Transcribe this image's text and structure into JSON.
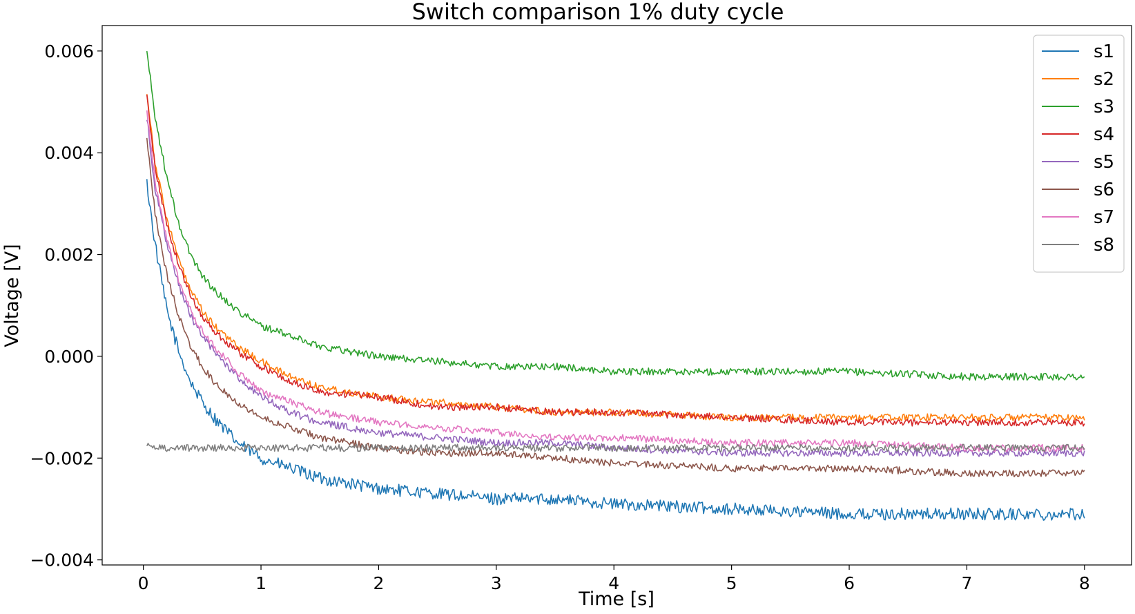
{
  "chart_data": {
    "type": "line",
    "title": "Switch comparison 1% duty cycle",
    "xlabel": "Time [s]",
    "ylabel": "Voltage [V]",
    "xlim": [
      -0.35,
      8.4
    ],
    "ylim": [
      -0.0041,
      0.0065
    ],
    "x_ticks": [
      0,
      1,
      2,
      3,
      4,
      5,
      6,
      7,
      8
    ],
    "x_tick_labels": [
      "0",
      "1",
      "2",
      "3",
      "4",
      "5",
      "6",
      "7",
      "8"
    ],
    "y_ticks": [
      -0.004,
      -0.002,
      0.0,
      0.002,
      0.004,
      0.006
    ],
    "y_tick_labels": [
      "−0.004",
      "−0.002",
      "0.000",
      "0.002",
      "0.004",
      "0.006"
    ],
    "grid": false,
    "legend_position": "top-right",
    "x_range": [
      0.03,
      8.0
    ],
    "x": [
      0.03,
      0.1,
      0.2,
      0.3,
      0.4,
      0.5,
      0.6,
      0.8,
      1.0,
      1.25,
      1.5,
      2.0,
      2.5,
      3.0,
      3.5,
      4.0,
      5.0,
      6.0,
      7.0,
      8.0
    ],
    "series": [
      {
        "name": "s1",
        "color": "#1f77b4",
        "values": [
          0.0034,
          0.0022,
          0.0009,
          0.0001,
          -0.0005,
          -0.0009,
          -0.0012,
          -0.0017,
          -0.002,
          -0.0022,
          -0.0024,
          -0.0026,
          -0.0027,
          -0.0028,
          -0.0028,
          -0.0029,
          -0.003,
          -0.0031,
          -0.0031,
          -0.0031
        ]
      },
      {
        "name": "s2",
        "color": "#ff7f0e",
        "values": [
          0.0052,
          0.0038,
          0.0027,
          0.0019,
          0.0013,
          0.0009,
          0.0006,
          0.0002,
          -0.0001,
          -0.0004,
          -0.0006,
          -0.0008,
          -0.0009,
          -0.001,
          -0.0011,
          -0.0011,
          -0.0012,
          -0.0012,
          -0.0012,
          -0.0012
        ]
      },
      {
        "name": "s3",
        "color": "#2ca02c",
        "values": [
          0.006,
          0.0047,
          0.0035,
          0.0026,
          0.002,
          0.0016,
          0.0013,
          0.0009,
          0.0006,
          0.0004,
          0.0002,
          0.0,
          -0.0001,
          -0.0002,
          -0.0002,
          -0.0003,
          -0.0003,
          -0.0003,
          -0.0004,
          -0.0004
        ]
      },
      {
        "name": "s4",
        "color": "#d62728",
        "values": [
          0.0051,
          0.0037,
          0.0026,
          0.0018,
          0.0012,
          0.0008,
          0.0005,
          0.0001,
          -0.0002,
          -0.0005,
          -0.0007,
          -0.0008,
          -0.001,
          -0.001,
          -0.0011,
          -0.0011,
          -0.0012,
          -0.0013,
          -0.0013,
          -0.0013
        ]
      },
      {
        "name": "s5",
        "color": "#9467bd",
        "values": [
          0.0047,
          0.0033,
          0.0022,
          0.0014,
          0.0008,
          0.0004,
          0.0001,
          -0.0004,
          -0.0008,
          -0.0011,
          -0.0013,
          -0.0015,
          -0.0016,
          -0.0017,
          -0.0017,
          -0.0018,
          -0.0019,
          -0.0019,
          -0.0019,
          -0.0019
        ]
      },
      {
        "name": "s6",
        "color": "#8c564b",
        "values": [
          0.0043,
          0.0028,
          0.0016,
          0.0008,
          0.0002,
          -0.0002,
          -0.0005,
          -0.0009,
          -0.0012,
          -0.0014,
          -0.0016,
          -0.0018,
          -0.0019,
          -0.0019,
          -0.002,
          -0.0021,
          -0.0022,
          -0.0022,
          -0.0023,
          -0.0023
        ]
      },
      {
        "name": "s7",
        "color": "#e377c2",
        "values": [
          0.0048,
          0.0034,
          0.0023,
          0.0015,
          0.0009,
          0.0005,
          0.0002,
          -0.0003,
          -0.0007,
          -0.0009,
          -0.0011,
          -0.0013,
          -0.0014,
          -0.0015,
          -0.0016,
          -0.0016,
          -0.0017,
          -0.0017,
          -0.0018,
          -0.0018
        ]
      },
      {
        "name": "s8",
        "color": "#7f7f7f",
        "values": [
          -0.0017,
          -0.0018,
          -0.0018,
          -0.0018,
          -0.0018,
          -0.0018,
          -0.0018,
          -0.0018,
          -0.0018,
          -0.0018,
          -0.0018,
          -0.0018,
          -0.0018,
          -0.0018,
          -0.0018,
          -0.0018,
          -0.0018,
          -0.0018,
          -0.0018,
          -0.0018
        ]
      }
    ]
  }
}
